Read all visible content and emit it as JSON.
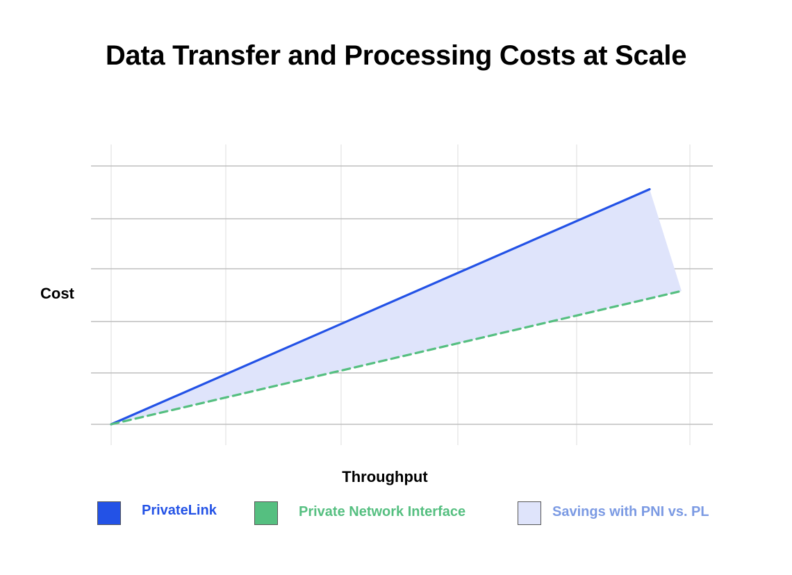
{
  "chart_data": {
    "type": "line",
    "title": "Data Transfer and Processing Costs at Scale",
    "xlabel": "Throughput",
    "ylabel": "Cost",
    "x": [
      0,
      1
    ],
    "xlim": [
      0,
      1
    ],
    "ylim": [
      0,
      1
    ],
    "grid": true,
    "legend_position": "bottom",
    "series": [
      {
        "name": "PrivateLink",
        "color": "#2352e6",
        "style": "solid",
        "x": [
          0,
          0.944
        ],
        "y": [
          0,
          0.91
        ]
      },
      {
        "name": "Private Network Interface",
        "color": "#55bf80",
        "style": "dashed",
        "x": [
          0,
          1
        ],
        "y": [
          0,
          0.516
        ]
      }
    ],
    "fill_between": {
      "name": "Savings with PNI vs. PL",
      "color": "#dfe4fb",
      "label_color": "#7b9ae3"
    }
  }
}
